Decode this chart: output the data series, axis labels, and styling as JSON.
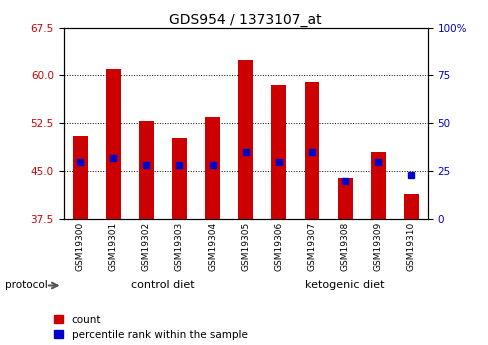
{
  "title": "GDS954 / 1373107_at",
  "categories": [
    "GSM19300",
    "GSM19301",
    "GSM19302",
    "GSM19303",
    "GSM19304",
    "GSM19305",
    "GSM19306",
    "GSM19307",
    "GSM19308",
    "GSM19309",
    "GSM19310"
  ],
  "bar_values": [
    50.5,
    61.0,
    52.8,
    50.2,
    53.5,
    62.5,
    58.5,
    59.0,
    44.0,
    48.0,
    41.5
  ],
  "percentile_values": [
    30,
    32,
    28,
    28,
    28,
    35,
    30,
    35,
    20,
    30,
    23
  ],
  "bar_color": "#cc0000",
  "dot_color": "#0000cc",
  "ylim_left": [
    37.5,
    67.5
  ],
  "ylim_right": [
    0,
    100
  ],
  "yticks_left": [
    37.5,
    45.0,
    52.5,
    60.0,
    67.5
  ],
  "yticks_right": [
    0,
    25,
    50,
    75,
    100
  ],
  "control_label": "control diet",
  "ketogenic_label": "ketogenic diet",
  "protocol_label": "protocol",
  "legend_count": "count",
  "legend_percentile": "percentile rank within the sample",
  "control_bg": "#ccffcc",
  "ketogenic_bg": "#55ee55",
  "gray_bg": "#c8c8c8",
  "title_fontsize": 10,
  "axis_label_color_left": "#cc0000",
  "axis_label_color_right": "#0000cc",
  "bar_bottom": 37.5,
  "n_control": 6,
  "n_ketogenic": 5
}
